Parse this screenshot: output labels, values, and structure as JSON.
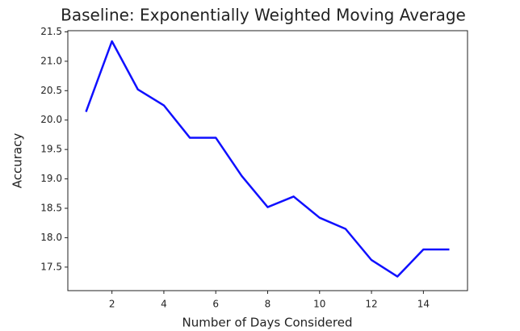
{
  "chart_data": {
    "type": "line",
    "title": "Baseline: Exponentially Weighted Moving Average",
    "x_label": "Number of Days Considered",
    "y_label": "Accuracy",
    "x": [
      1,
      2,
      3,
      4,
      5,
      6,
      7,
      8,
      9,
      10,
      11,
      12,
      13,
      14,
      15
    ],
    "series": [
      {
        "color": "#1010ff",
        "values": [
          20.14,
          21.34,
          20.52,
          20.25,
          19.7,
          19.7,
          19.05,
          18.52,
          18.7,
          18.34,
          18.15,
          17.62,
          17.34,
          17.8,
          17.8
        ]
      }
    ],
    "xlim": [
      0.3,
      15.7
    ],
    "ylim": [
      17.1,
      21.52
    ],
    "xticks": [
      2,
      4,
      6,
      8,
      10,
      12,
      14
    ],
    "yticks": [
      17.5,
      {
        "value": 18,
        "label": "18.0"
      },
      18.5,
      {
        "value": 19,
        "label": "19.0"
      },
      19.5,
      {
        "value": 20,
        "label": "20.0"
      },
      20.5,
      {
        "value": 21,
        "label": "21.0"
      },
      21.5
    ]
  }
}
